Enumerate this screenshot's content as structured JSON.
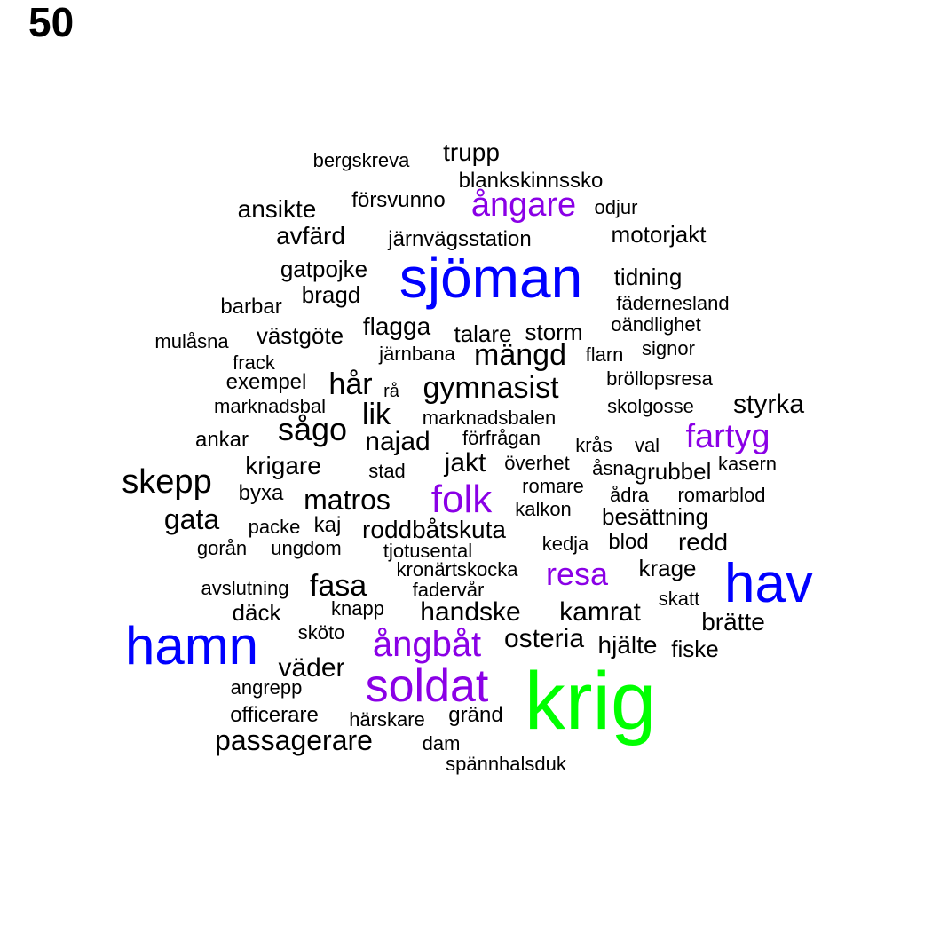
{
  "page_number": "50",
  "colors": {
    "tier1": "#00ff00",
    "tier2": "#0000ff",
    "tier3": "#8a00e6",
    "tier4": "#000000"
  },
  "words": [
    {
      "text": "krig",
      "tier": 1
    },
    {
      "text": "sjöman",
      "tier": 2
    },
    {
      "text": "hav",
      "tier": 2
    },
    {
      "text": "hamn",
      "tier": 2
    },
    {
      "text": "soldat",
      "tier": 3
    },
    {
      "text": "ångbåt",
      "tier": 3
    },
    {
      "text": "folk",
      "tier": 3
    },
    {
      "text": "ångare",
      "tier": 3
    },
    {
      "text": "fartyg",
      "tier": 3
    },
    {
      "text": "resa",
      "tier": 3
    },
    {
      "text": "trupp",
      "tier": 4
    },
    {
      "text": "bergskreva",
      "tier": 4
    },
    {
      "text": "blankskinnssko",
      "tier": 4
    },
    {
      "text": "försvunno",
      "tier": 4
    },
    {
      "text": "odjur",
      "tier": 4
    },
    {
      "text": "ansikte",
      "tier": 4
    },
    {
      "text": "avfärd",
      "tier": 4
    },
    {
      "text": "järnvägsstation",
      "tier": 4
    },
    {
      "text": "motorjakt",
      "tier": 4
    },
    {
      "text": "gatpojke",
      "tier": 4
    },
    {
      "text": "tidning",
      "tier": 4
    },
    {
      "text": "bragd",
      "tier": 4
    },
    {
      "text": "barbar",
      "tier": 4
    },
    {
      "text": "fädernesland",
      "tier": 4
    },
    {
      "text": "flagga",
      "tier": 4
    },
    {
      "text": "oändlighet",
      "tier": 4
    },
    {
      "text": "talare",
      "tier": 4
    },
    {
      "text": "storm",
      "tier": 4
    },
    {
      "text": "västgöte",
      "tier": 4
    },
    {
      "text": "mulåsna",
      "tier": 4
    },
    {
      "text": "signor",
      "tier": 4
    },
    {
      "text": "järnbana",
      "tier": 4
    },
    {
      "text": "mängd",
      "tier": 4
    },
    {
      "text": "flarn",
      "tier": 4
    },
    {
      "text": "frack",
      "tier": 4
    },
    {
      "text": "bröllopsresa",
      "tier": 4
    },
    {
      "text": "exempel",
      "tier": 4
    },
    {
      "text": "hår",
      "tier": 4
    },
    {
      "text": "rå",
      "tier": 4
    },
    {
      "text": "gymnasist",
      "tier": 4
    },
    {
      "text": "marknadsbal",
      "tier": 4
    },
    {
      "text": "skolgosse",
      "tier": 4
    },
    {
      "text": "styrka",
      "tier": 4
    },
    {
      "text": "lik",
      "tier": 4
    },
    {
      "text": "marknadsbalen",
      "tier": 4
    },
    {
      "text": "sågo",
      "tier": 4
    },
    {
      "text": "ankar",
      "tier": 4
    },
    {
      "text": "najad",
      "tier": 4
    },
    {
      "text": "förfrågan",
      "tier": 4
    },
    {
      "text": "krås",
      "tier": 4
    },
    {
      "text": "val",
      "tier": 4
    },
    {
      "text": "krigare",
      "tier": 4
    },
    {
      "text": "jakt",
      "tier": 4
    },
    {
      "text": "överhet",
      "tier": 4
    },
    {
      "text": "åsna",
      "tier": 4
    },
    {
      "text": "grubbel",
      "tier": 4
    },
    {
      "text": "kasern",
      "tier": 4
    },
    {
      "text": "stad",
      "tier": 4
    },
    {
      "text": "skepp",
      "tier": 4
    },
    {
      "text": "romare",
      "tier": 4
    },
    {
      "text": "byxa",
      "tier": 4
    },
    {
      "text": "matros",
      "tier": 4
    },
    {
      "text": "ådra",
      "tier": 4
    },
    {
      "text": "romarblod",
      "tier": 4
    },
    {
      "text": "kalkon",
      "tier": 4
    },
    {
      "text": "gata",
      "tier": 4
    },
    {
      "text": "besättning",
      "tier": 4
    },
    {
      "text": "packe",
      "tier": 4
    },
    {
      "text": "kaj",
      "tier": 4
    },
    {
      "text": "roddbåtskuta",
      "tier": 4
    },
    {
      "text": "blod",
      "tier": 4
    },
    {
      "text": "redd",
      "tier": 4
    },
    {
      "text": "kedja",
      "tier": 4
    },
    {
      "text": "gorån",
      "tier": 4
    },
    {
      "text": "ungdom",
      "tier": 4
    },
    {
      "text": "tjotusental",
      "tier": 4
    },
    {
      "text": "krage",
      "tier": 4
    },
    {
      "text": "kronärtskocka",
      "tier": 4
    },
    {
      "text": "avslutning",
      "tier": 4
    },
    {
      "text": "fasa",
      "tier": 4
    },
    {
      "text": "fadervår",
      "tier": 4
    },
    {
      "text": "skatt",
      "tier": 4
    },
    {
      "text": "däck",
      "tier": 4
    },
    {
      "text": "knapp",
      "tier": 4
    },
    {
      "text": "handske",
      "tier": 4
    },
    {
      "text": "kamrat",
      "tier": 4
    },
    {
      "text": "brätte",
      "tier": 4
    },
    {
      "text": "sköto",
      "tier": 4
    },
    {
      "text": "osteria",
      "tier": 4
    },
    {
      "text": "hjälte",
      "tier": 4
    },
    {
      "text": "fiske",
      "tier": 4
    },
    {
      "text": "väder",
      "tier": 4
    },
    {
      "text": "angrepp",
      "tier": 4
    },
    {
      "text": "officerare",
      "tier": 4
    },
    {
      "text": "gränd",
      "tier": 4
    },
    {
      "text": "härskare",
      "tier": 4
    },
    {
      "text": "passagerare",
      "tier": 4
    },
    {
      "text": "dam",
      "tier": 4
    },
    {
      "text": "spännhalsduk",
      "tier": 4
    }
  ]
}
